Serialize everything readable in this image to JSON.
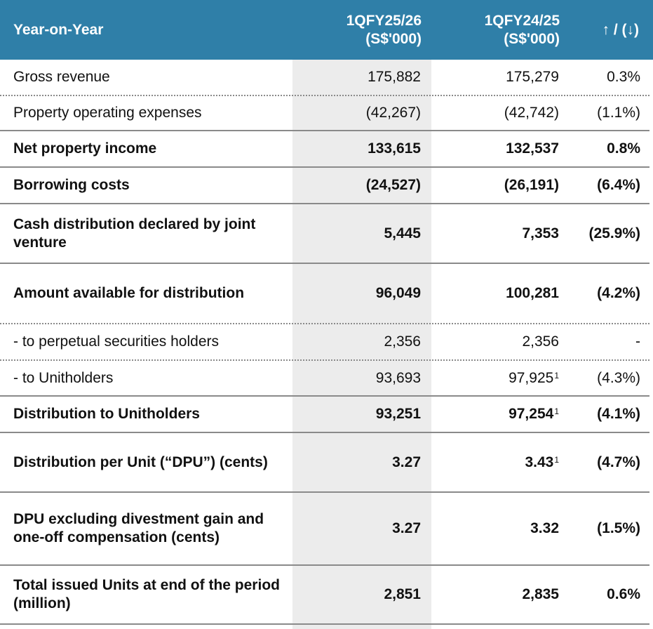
{
  "header": {
    "label": "Year-on-Year",
    "col1": [
      "1QFY25/26",
      "(S$'000)"
    ],
    "col2": [
      "1QFY24/25",
      "(S$'000)"
    ],
    "col3": "↑ / (↓)"
  },
  "rows": [
    {
      "label": "Gross revenue",
      "v1": "175,882",
      "v2": "175,279",
      "v2_note": "",
      "change": "0.3%",
      "bold": false
    },
    {
      "label": "Property operating expenses",
      "v1": "(42,267)",
      "v2": "(42,742)",
      "v2_note": "",
      "change": "(1.1%)",
      "bold": false
    },
    {
      "label": "Net property income",
      "v1": "133,615",
      "v2": "132,537",
      "v2_note": "",
      "change": "0.8%",
      "bold": true
    },
    {
      "label": "Borrowing costs",
      "v1": "(24,527)",
      "v2": "(26,191)",
      "v2_note": "",
      "change": "(6.4%)",
      "bold": true
    },
    {
      "label": "Cash distribution declared by joint venture",
      "v1": "5,445",
      "v2": "7,353",
      "v2_note": "",
      "change": "(25.9%)",
      "bold": true
    },
    {
      "label": "Amount available for distribution",
      "v1": "96,049",
      "v2": "100,281",
      "v2_note": "",
      "change": "(4.2%)",
      "bold": true
    },
    {
      "label": "- to perpetual securities holders",
      "v1": "2,356",
      "v2": "2,356",
      "v2_note": "",
      "change": "-",
      "bold": false
    },
    {
      "label": "- to Unitholders",
      "v1": "93,693",
      "v2": "97,925",
      "v2_note": "1",
      "change": "(4.3%)",
      "bold": false
    },
    {
      "label": "Distribution to Unitholders",
      "v1": "93,251",
      "v2": "97,254",
      "v2_note": "1",
      "change": "(4.1%)",
      "bold": true
    },
    {
      "label": "Distribution per Unit (“DPU”) (cents)",
      "v1": "3.27",
      "v2": "3.43",
      "v2_note": "1",
      "change": "(4.7%)",
      "bold": true
    },
    {
      "label": "DPU excluding divestment gain and one-off compensation (cents)",
      "v1": "3.27",
      "v2": "3.32",
      "v2_note": "",
      "change": "(1.5%)",
      "bold": true
    },
    {
      "label": "Total issued Units at end of the period (million)",
      "v1": "2,851",
      "v2": "2,835",
      "v2_note": "",
      "change": "0.6%",
      "bold": true
    }
  ]
}
